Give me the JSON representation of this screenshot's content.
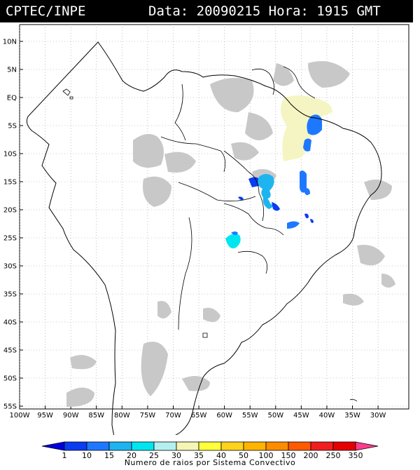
{
  "header": {
    "org": "CPTEC/INPE",
    "date_label": "Data:",
    "date": "20090215",
    "time_label": "Hora:",
    "time": "1915 GMT"
  },
  "map": {
    "lat_ticks": [
      "10N",
      "5N",
      "EQ",
      "5S",
      "10S",
      "15S",
      "20S",
      "25S",
      "30S",
      "35S",
      "40S",
      "45S",
      "50S",
      "55S"
    ],
    "lon_ticks": [
      "100W",
      "95W",
      "90W",
      "85W",
      "80W",
      "75W",
      "70W",
      "65W",
      "60W",
      "55W",
      "50W",
      "45W",
      "40W",
      "35W",
      "30W"
    ],
    "land_color": "#ffffff",
    "cloud_color": "#c8c8c8",
    "border_color": "#000000",
    "grid": "dotted"
  },
  "colorbar": {
    "labels": [
      "1",
      "10",
      "15",
      "20",
      "25",
      "30",
      "35",
      "40",
      "50",
      "100",
      "150",
      "200",
      "250",
      "350"
    ],
    "colors": [
      "#0000dd",
      "#0a3cf0",
      "#1e78ff",
      "#1eb4f0",
      "#00e6f0",
      "#b4f0f0",
      "#f5f5b4",
      "#ffff3c",
      "#ffd21e",
      "#ffb400",
      "#ff8c00",
      "#ff5a00",
      "#f01e1e",
      "#e60000",
      "#ff3c8c"
    ],
    "caption": "Numero de raios por Sistema Convectivo"
  }
}
